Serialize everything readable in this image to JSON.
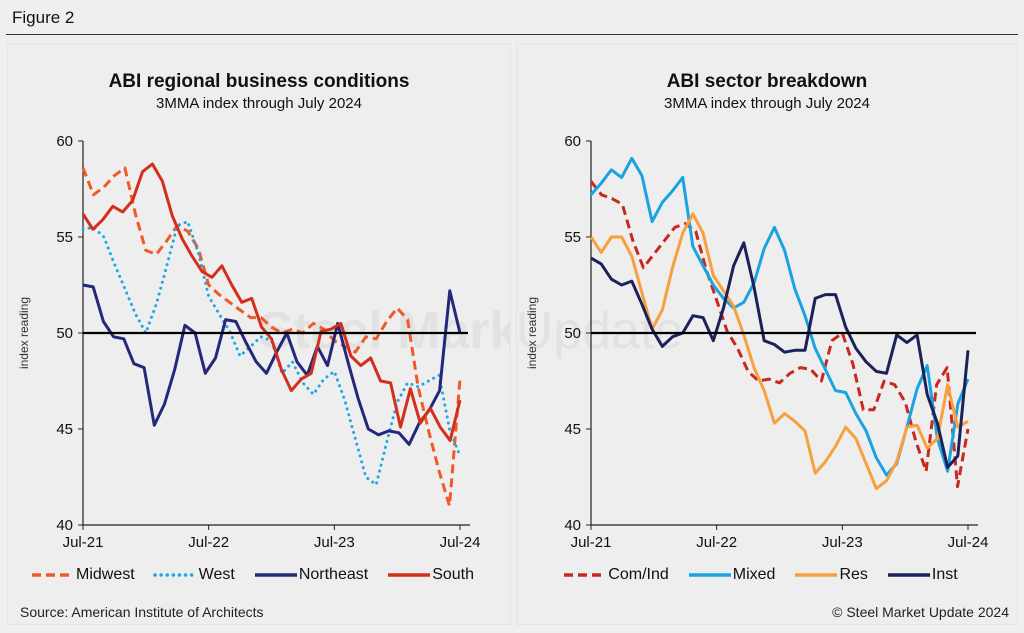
{
  "figure": {
    "title": "Figure 2",
    "source": "Source: American Institute of Architects",
    "copyright": "© Steel Market Update 2024",
    "watermark": "Steel Market Update"
  },
  "chart_data": [
    {
      "type": "line",
      "title": "ABI regional business conditions",
      "subtitle": "3MMA index through July 2024",
      "xlabel": "",
      "ylabel": "index reading",
      "ylim": [
        40,
        60
      ],
      "yticks": [
        40,
        45,
        50,
        55,
        60
      ],
      "xticks": [
        "Jul-21",
        "Jul-22",
        "Jul-23",
        "Jul-24"
      ],
      "x_range": [
        "Jul-21",
        "Jul-24"
      ],
      "reference_line": 50,
      "legend": "bottom",
      "series": [
        {
          "name": "Midwest",
          "color": "#f05a28",
          "style": "dashed",
          "values": [
            58.6,
            57.2,
            57.6,
            58.2,
            58.6,
            56.2,
            54.3,
            54.1,
            54.8,
            55.6,
            55.3,
            54.4,
            52.5,
            52.0,
            51.6,
            51.2,
            50.8,
            50.8,
            50.3,
            50.0,
            50.2,
            50.0,
            50.5,
            50.2,
            49.6,
            49.3,
            49.0,
            49.8,
            49.7,
            50.6,
            51.3,
            50.7,
            47.2,
            44.9,
            42.8,
            41.0,
            47.6
          ]
        },
        {
          "name": "West",
          "color": "#1ea7e1",
          "style": "dotted",
          "values": [
            55.4,
            55.5,
            55.0,
            53.6,
            52.3,
            51.0,
            50.0,
            51.5,
            53.5,
            55.6,
            55.8,
            54.2,
            51.9,
            51.0,
            50.1,
            48.8,
            49.3,
            49.8,
            49.6,
            47.9,
            48.5,
            47.4,
            46.8,
            47.6,
            48.0,
            46.5,
            44.5,
            42.5,
            42.1,
            44.3,
            46.4,
            47.4,
            47.2,
            47.5,
            47.8,
            45.0,
            43.6
          ]
        },
        {
          "name": "Northeast",
          "color": "#23287a",
          "style": "solid",
          "values": [
            52.5,
            52.4,
            50.6,
            49.8,
            49.7,
            48.4,
            48.2,
            45.2,
            46.3,
            48.1,
            50.4,
            50.0,
            47.9,
            48.7,
            50.7,
            50.6,
            49.5,
            48.5,
            47.9,
            49.0,
            50.0,
            48.5,
            47.8,
            49.3,
            48.3,
            50.5,
            48.5,
            46.6,
            45.0,
            44.7,
            44.9,
            44.8,
            44.2,
            45.3,
            46.0,
            47.0,
            52.2,
            50.0
          ]
        },
        {
          "name": "South",
          "color": "#d42e1c",
          "style": "solid",
          "values": [
            56.2,
            55.4,
            55.9,
            56.6,
            56.3,
            56.9,
            58.4,
            58.8,
            57.9,
            56.1,
            54.9,
            54.0,
            53.2,
            52.9,
            53.5,
            52.5,
            51.6,
            51.8,
            50.3,
            49.7,
            48.1,
            47.0,
            47.6,
            47.9,
            50.1,
            50.2,
            50.5,
            48.8,
            48.3,
            48.7,
            47.5,
            47.4,
            45.1,
            47.1,
            45.3,
            46.1,
            45.1,
            44.4,
            46.5
          ]
        }
      ]
    },
    {
      "type": "line",
      "title": "ABI sector breakdown",
      "subtitle": "3MMA index through July 2024",
      "xlabel": "",
      "ylabel": "index reading",
      "ylim": [
        40,
        60
      ],
      "yticks": [
        40,
        45,
        50,
        55,
        60
      ],
      "xticks": [
        "Jul-21",
        "Jul-22",
        "Jul-23",
        "Jul-24"
      ],
      "x_range": [
        "Jul-21",
        "Jul-24"
      ],
      "reference_line": 50,
      "legend": "bottom",
      "series": [
        {
          "name": "Com/Ind",
          "color": "#c8281e",
          "style": "dashed",
          "values": [
            57.9,
            57.2,
            57.0,
            56.7,
            54.8,
            53.4,
            54.1,
            54.8,
            55.5,
            55.7,
            55.3,
            53.3,
            51.7,
            50.1,
            49.2,
            48.0,
            47.5,
            47.6,
            47.4,
            47.9,
            48.2,
            48.1,
            47.5,
            49.6,
            50.0,
            48.4,
            46.0,
            46.0,
            47.5,
            47.3,
            46.4,
            44.4,
            42.8,
            47.3,
            48.2,
            42.0,
            45.0
          ]
        },
        {
          "name": "Mixed",
          "color": "#1aa3e0",
          "style": "solid",
          "values": [
            57.2,
            57.8,
            58.5,
            58.1,
            59.1,
            58.2,
            55.8,
            56.8,
            57.4,
            58.1,
            54.5,
            53.5,
            52.5,
            51.8,
            51.3,
            51.6,
            52.6,
            54.4,
            55.5,
            54.3,
            52.3,
            50.9,
            49.2,
            48.1,
            47.0,
            46.9,
            45.8,
            44.9,
            43.5,
            42.6,
            43.2,
            45.1,
            47.1,
            48.3,
            44.5,
            42.8,
            46.3,
            47.6
          ]
        },
        {
          "name": "Res",
          "color": "#f7a03c",
          "style": "solid",
          "values": [
            55.0,
            54.2,
            55.0,
            55.0,
            54.0,
            52.1,
            50.2,
            51.2,
            53.4,
            55.2,
            56.2,
            55.2,
            53.0,
            52.2,
            51.4,
            49.9,
            48.2,
            47.0,
            45.3,
            45.8,
            45.4,
            44.9,
            42.7,
            43.3,
            44.1,
            45.1,
            44.5,
            43.2,
            41.9,
            42.3,
            43.3,
            45.1,
            45.2,
            44.0,
            44.5,
            47.3,
            45.1,
            45.4
          ]
        },
        {
          "name": "Inst",
          "color": "#1c2259",
          "style": "solid",
          "values": [
            53.9,
            53.6,
            52.8,
            52.5,
            52.7,
            51.5,
            50.2,
            49.3,
            49.8,
            50.0,
            50.9,
            50.8,
            49.6,
            51.3,
            53.5,
            54.7,
            52.4,
            49.6,
            49.4,
            49.0,
            49.1,
            49.1,
            51.8,
            52.0,
            52.0,
            50.3,
            49.2,
            48.5,
            48.0,
            47.9,
            49.9,
            49.5,
            49.9,
            46.8,
            45.3,
            43.0,
            43.6,
            49.1
          ]
        }
      ]
    }
  ]
}
